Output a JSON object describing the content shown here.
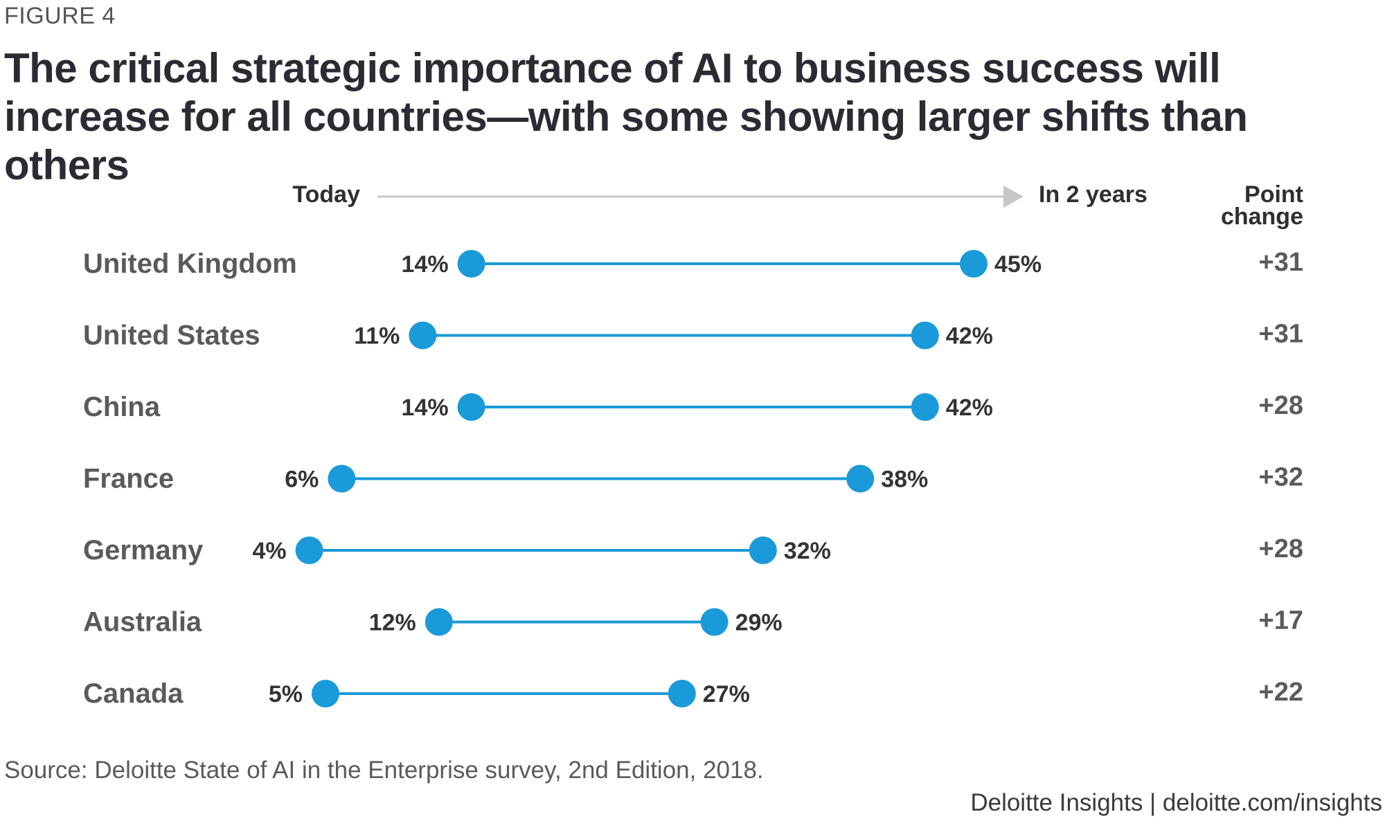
{
  "figure_label": "FIGURE 4",
  "title": "The critical strategic importance of AI to business success will increase for all countries—with some showing larger shifts than others",
  "source": "Source: Deloitte State of AI in the Enterprise survey, 2nd Edition, 2018.",
  "brand": "Deloitte Insights | deloitte.com/insights",
  "colors": {
    "accent": "#1a9ad9",
    "arrow": "#c8c8c8",
    "text": "#2b2b33"
  },
  "chart_data": {
    "type": "dumbbell",
    "title": "The critical strategic importance of AI to business success will increase for all countries—with some showing larger shifts than others",
    "start_label": "Today",
    "end_label": "In 2 years",
    "change_label_line1": "Point",
    "change_label_line2": "change",
    "xlim": [
      0,
      50
    ],
    "rows": [
      {
        "country": "United Kingdom",
        "today": 14,
        "future": 45,
        "today_label": "14%",
        "future_label": "45%",
        "change": "+31"
      },
      {
        "country": "United States",
        "today": 11,
        "future": 42,
        "today_label": "11%",
        "future_label": "42%",
        "change": "+31"
      },
      {
        "country": "China",
        "today": 14,
        "future": 42,
        "today_label": "14%",
        "future_label": "42%",
        "change": "+28"
      },
      {
        "country": "France",
        "today": 6,
        "future": 38,
        "today_label": "6%",
        "future_label": "38%",
        "change": "+32"
      },
      {
        "country": "Germany",
        "today": 4,
        "future": 32,
        "today_label": "4%",
        "future_label": "32%",
        "change": "+28"
      },
      {
        "country": "Australia",
        "today": 12,
        "future": 29,
        "today_label": "12%",
        "future_label": "29%",
        "change": "+17"
      },
      {
        "country": "Canada",
        "today": 5,
        "future": 27,
        "today_label": "5%",
        "future_label": "27%",
        "change": "+22"
      }
    ]
  }
}
